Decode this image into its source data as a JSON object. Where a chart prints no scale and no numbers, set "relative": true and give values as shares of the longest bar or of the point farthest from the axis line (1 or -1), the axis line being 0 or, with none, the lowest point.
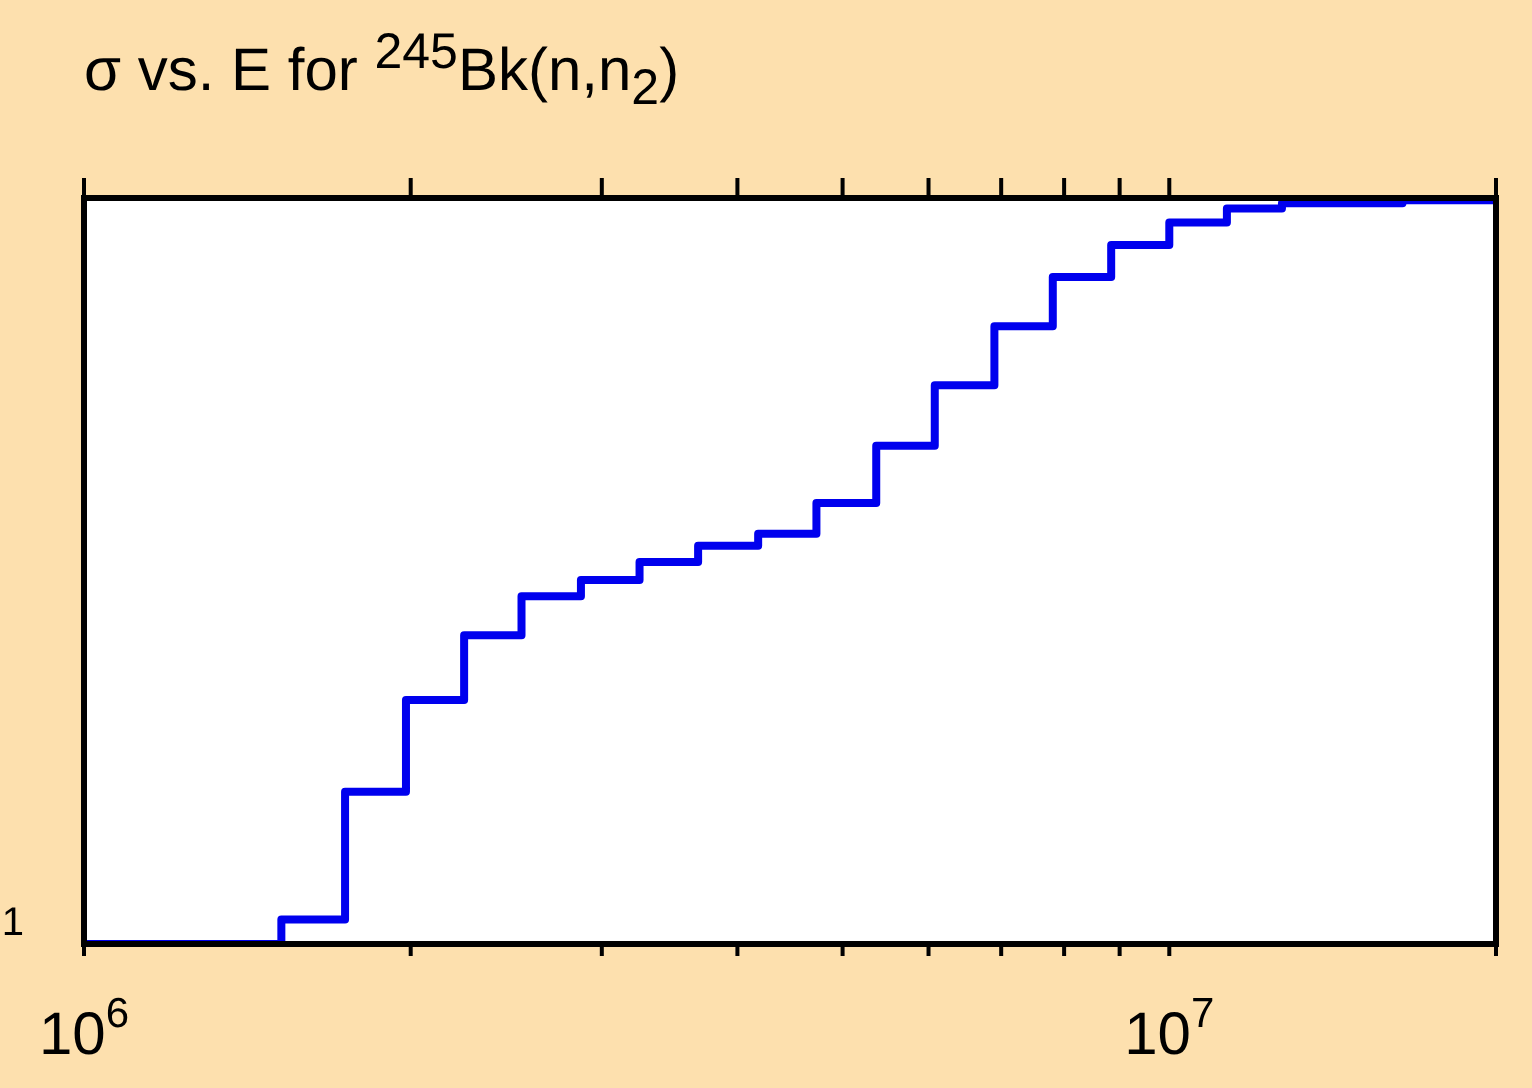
{
  "chart_data": {
    "type": "step",
    "title": "σ vs. E for $^{245}$Bk(n,n$_{2}$)",
    "relative": true,
    "log": "x",
    "x": [
      1000000,
      1520000,
      1740000,
      1980000,
      2240000,
      2530000,
      2870000,
      3250000,
      3680000,
      4180000,
      4730000,
      5370000,
      6080000,
      6900000,
      7810000,
      8840000,
      10000000,
      11300000,
      12700000,
      16400000,
      20000000
    ],
    "series": [
      {
        "color": "#0000ee",
        "values": [
          0,
          0.033,
          0.204,
          0.327,
          0.414,
          0.466,
          0.488,
          0.512,
          0.534,
          0.55,
          0.591,
          0.668,
          0.749,
          0.828,
          0.894,
          0.937,
          0.967,
          0.986,
          0.993,
          0.997,
          1
        ]
      }
    ],
    "xlim": [
      1000000,
      20000000
    ],
    "xticks": [
      {
        "value": 1000000,
        "label": "10$^{6}$"
      },
      {
        "value": 2000000,
        "label": null
      },
      {
        "value": 3000000,
        "label": null
      },
      {
        "value": 4000000,
        "label": null
      },
      {
        "value": 5000000,
        "label": null
      },
      {
        "value": 6000000,
        "label": null
      },
      {
        "value": 7000000,
        "label": null
      },
      {
        "value": 8000000,
        "label": null
      },
      {
        "value": 9000000,
        "label": null
      },
      {
        "value": 10000000,
        "label": "10$^{7}$"
      },
      {
        "value": 20000000,
        "label": null
      }
    ],
    "annotations": [
      "1"
    ]
  }
}
